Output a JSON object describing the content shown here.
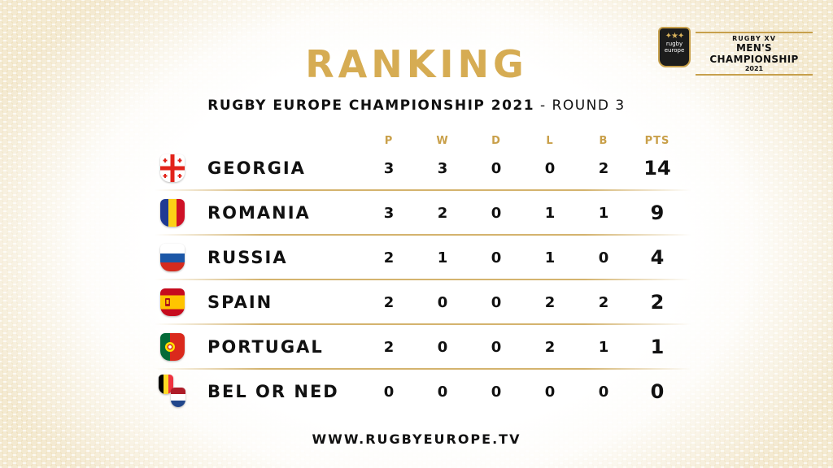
{
  "title": "RANKING",
  "subtitle": {
    "main": "RUGBY EUROPE CHAMPIONSHIP 2021",
    "round": " - ROUND 3"
  },
  "logo": {
    "brand": "rugby europe",
    "line1": "RUGBY XV",
    "line2": "MEN'S CHAMPIONSHIP",
    "line3": "2021"
  },
  "columns": [
    "P",
    "W",
    "D",
    "L",
    "B",
    "PTS"
  ],
  "teams": [
    {
      "name": "GEORGIA",
      "stats": [
        "3",
        "3",
        "0",
        "0",
        "2",
        "14"
      ],
      "flag": "georgia"
    },
    {
      "name": "ROMANIA",
      "stats": [
        "3",
        "2",
        "0",
        "1",
        "1",
        "9"
      ],
      "flag": "romania"
    },
    {
      "name": "RUSSIA",
      "stats": [
        "2",
        "1",
        "0",
        "1",
        "0",
        "4"
      ],
      "flag": "russia"
    },
    {
      "name": "SPAIN",
      "stats": [
        "2",
        "0",
        "0",
        "2",
        "2",
        "2"
      ],
      "flag": "spain"
    },
    {
      "name": "PORTUGAL",
      "stats": [
        "2",
        "0",
        "0",
        "2",
        "1",
        "1"
      ],
      "flag": "portugal"
    },
    {
      "name": "BEL OR NED",
      "stats": [
        "0",
        "0",
        "0",
        "0",
        "0",
        "0"
      ],
      "flag": "belgium-netherlands"
    }
  ],
  "footer": "WWW.RUGBYEUROPE.TV",
  "colors": {
    "gold": "#d6ac53",
    "text": "#111111"
  }
}
